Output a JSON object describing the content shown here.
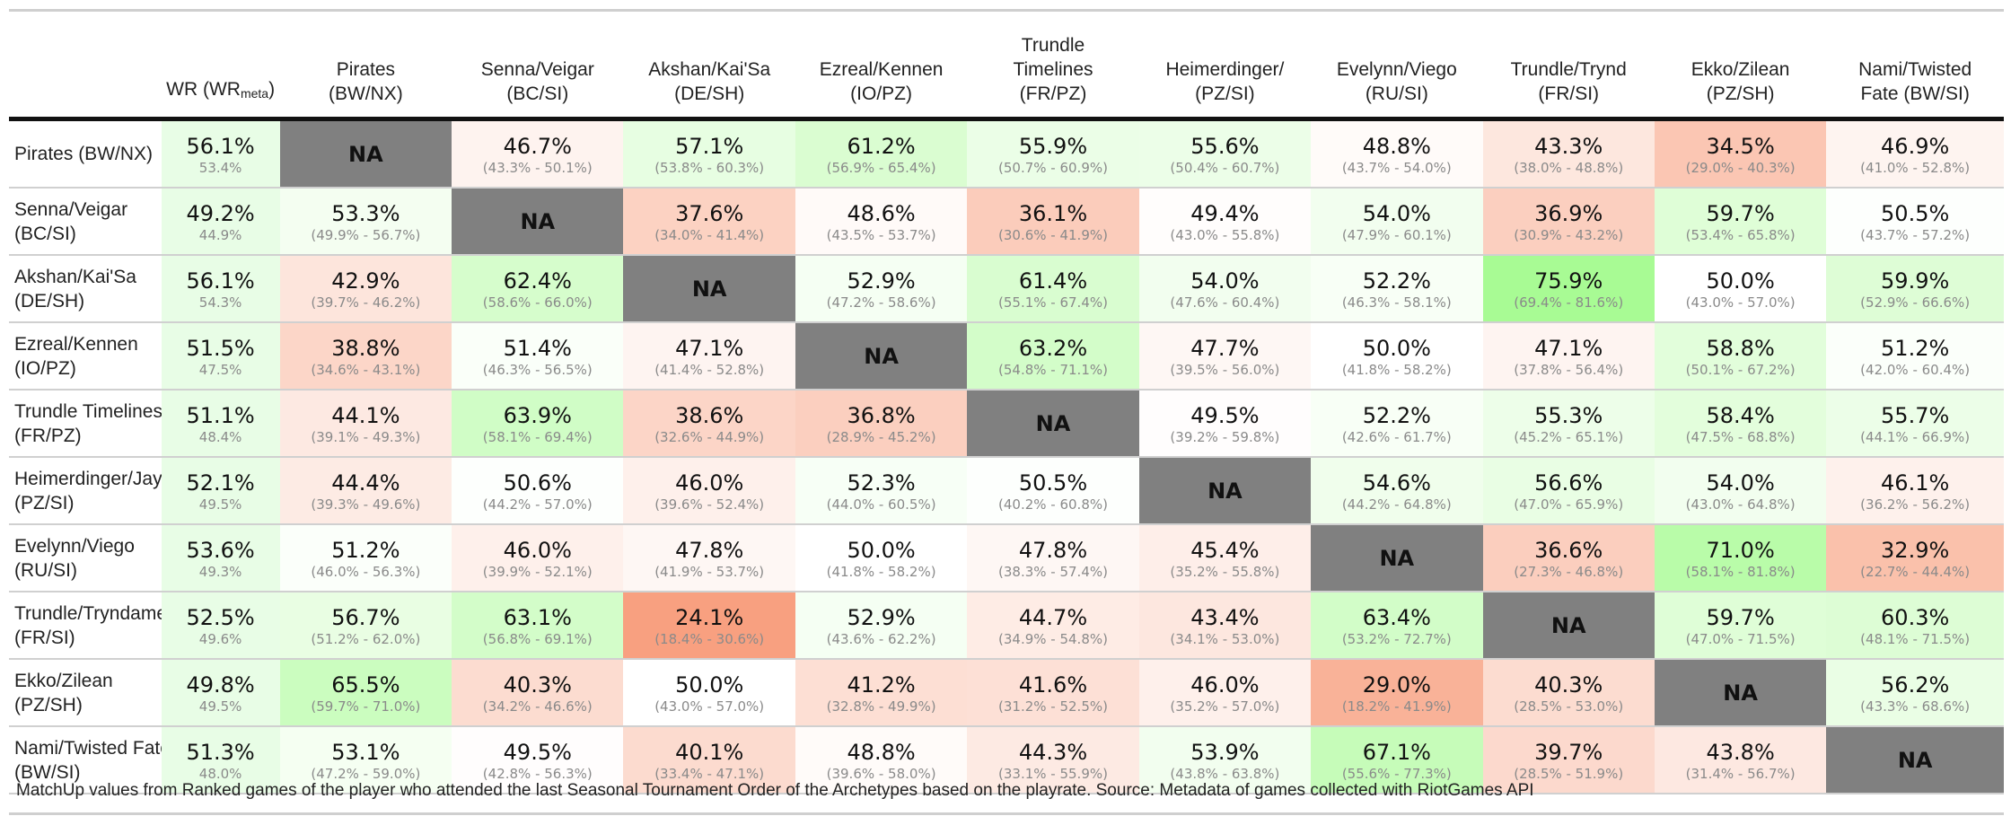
{
  "chart_data": {
    "type": "heatmap",
    "wr_header": "WR (WR",
    "wr_header_sub": "meta",
    "columns": [
      [
        "Pirates",
        "(BW/NX)"
      ],
      [
        "Senna/Veigar",
        "(BC/SI)"
      ],
      [
        "Akshan/Kai'Sa",
        "(DE/SH)"
      ],
      [
        "Ezreal/Kennen",
        "(IO/PZ)"
      ],
      [
        "Trundle",
        "Timelines",
        "(FR/PZ)"
      ],
      [
        "Heimerdinger/",
        "(PZ/SI)"
      ],
      [
        "Evelynn/Viego",
        "(RU/SI)"
      ],
      [
        "Trundle/Trynd",
        "(FR/SI)"
      ],
      [
        "Ekko/Zilean",
        "(PZ/SH)"
      ],
      [
        "Nami/Twisted",
        "Fate (BW/SI)"
      ]
    ],
    "rows": [
      {
        "label": [
          "Pirates (BW/NX)"
        ],
        "wr": "56.1%",
        "wr_meta": "53.4%",
        "values": [
          null,
          46.7,
          57.1,
          61.2,
          55.9,
          55.6,
          48.8,
          43.3,
          34.5,
          46.9
        ],
        "ci": [
          null,
          "(43.3% - 50.1%)",
          "(53.8% - 60.3%)",
          "(56.9% - 65.4%)",
          "(50.7% - 60.9%)",
          "(50.4% - 60.7%)",
          "(43.7% - 54.0%)",
          "(38.0% - 48.8%)",
          "(29.0% - 40.3%)",
          "(41.0% - 52.8%)"
        ]
      },
      {
        "label": [
          "Senna/Veigar",
          "(BC/SI)"
        ],
        "wr": "49.2%",
        "wr_meta": "44.9%",
        "values": [
          53.3,
          null,
          37.6,
          48.6,
          36.1,
          49.4,
          54.0,
          36.9,
          59.7,
          50.5
        ],
        "ci": [
          "(49.9% - 56.7%)",
          null,
          "(34.0% - 41.4%)",
          "(43.5% - 53.7%)",
          "(30.6% - 41.9%)",
          "(43.0% - 55.8%)",
          "(47.9% - 60.1%)",
          "(30.9% - 43.2%)",
          "(53.4% - 65.8%)",
          "(43.7% - 57.2%)"
        ]
      },
      {
        "label": [
          "Akshan/Kai'Sa",
          "(DE/SH)"
        ],
        "wr": "56.1%",
        "wr_meta": "54.3%",
        "values": [
          42.9,
          62.4,
          null,
          52.9,
          61.4,
          54.0,
          52.2,
          75.9,
          50.0,
          59.9
        ],
        "ci": [
          "(39.7% - 46.2%)",
          "(58.6% - 66.0%)",
          null,
          "(47.2% - 58.6%)",
          "(55.1% - 67.4%)",
          "(47.6% - 60.4%)",
          "(46.3% - 58.1%)",
          "(69.4% - 81.6%)",
          "(43.0% - 57.0%)",
          "(52.9% - 66.6%)"
        ]
      },
      {
        "label": [
          "Ezreal/Kennen",
          "(IO/PZ)"
        ],
        "wr": "51.5%",
        "wr_meta": "47.5%",
        "values": [
          38.8,
          51.4,
          47.1,
          null,
          63.2,
          47.7,
          50.0,
          47.1,
          58.8,
          51.2
        ],
        "ci": [
          "(34.6% - 43.1%)",
          "(46.3% - 56.5%)",
          "(41.4% - 52.8%)",
          null,
          "(54.8% - 71.1%)",
          "(39.5% - 56.0%)",
          "(41.8% - 58.2%)",
          "(37.8% - 56.4%)",
          "(50.1% - 67.2%)",
          "(42.0% - 60.4%)"
        ]
      },
      {
        "label": [
          "Trundle Timelines",
          "(FR/PZ)"
        ],
        "wr": "51.1%",
        "wr_meta": "48.4%",
        "values": [
          44.1,
          63.9,
          38.6,
          36.8,
          null,
          49.5,
          52.2,
          55.3,
          58.4,
          55.7
        ],
        "ci": [
          "(39.1% - 49.3%)",
          "(58.1% - 69.4%)",
          "(32.6% - 44.9%)",
          "(28.9% - 45.2%)",
          null,
          "(39.2% - 59.8%)",
          "(42.6% - 61.7%)",
          "(45.2% - 65.1%)",
          "(47.5% - 68.8%)",
          "(44.1% - 66.9%)"
        ]
      },
      {
        "label": [
          "Heimerdinger/Jayce",
          "(PZ/SI)"
        ],
        "wr": "52.1%",
        "wr_meta": "49.5%",
        "values": [
          44.4,
          50.6,
          46.0,
          52.3,
          50.5,
          null,
          54.6,
          56.6,
          54.0,
          46.1
        ],
        "ci": [
          "(39.3% - 49.6%)",
          "(44.2% - 57.0%)",
          "(39.6% - 52.4%)",
          "(44.0% - 60.5%)",
          "(40.2% - 60.8%)",
          null,
          "(44.2% - 64.8%)",
          "(47.0% - 65.9%)",
          "(43.0% - 64.8%)",
          "(36.2% - 56.2%)"
        ]
      },
      {
        "label": [
          "Evelynn/Viego",
          "(RU/SI)"
        ],
        "wr": "53.6%",
        "wr_meta": "49.3%",
        "values": [
          51.2,
          46.0,
          47.8,
          50.0,
          47.8,
          45.4,
          null,
          36.6,
          71.0,
          32.9
        ],
        "ci": [
          "(46.0% - 56.3%)",
          "(39.9% - 52.1%)",
          "(41.9% - 53.7%)",
          "(41.8% - 58.2%)",
          "(38.3% - 57.4%)",
          "(35.2% - 55.8%)",
          null,
          "(27.3% - 46.8%)",
          "(58.1% - 81.8%)",
          "(22.7% - 44.4%)"
        ]
      },
      {
        "label": [
          "Trundle/Tryndamere",
          "(FR/SI)"
        ],
        "wr": "52.5%",
        "wr_meta": "49.6%",
        "values": [
          56.7,
          63.1,
          24.1,
          52.9,
          44.7,
          43.4,
          63.4,
          null,
          59.7,
          60.3
        ],
        "ci": [
          "(51.2% - 62.0%)",
          "(56.8% - 69.1%)",
          "(18.4% - 30.6%)",
          "(43.6% - 62.2%)",
          "(34.9% - 54.8%)",
          "(34.1% - 53.0%)",
          "(53.2% - 72.7%)",
          null,
          "(47.0% - 71.5%)",
          "(48.1% - 71.5%)"
        ]
      },
      {
        "label": [
          "Ekko/Zilean",
          "(PZ/SH)"
        ],
        "wr": "49.8%",
        "wr_meta": "49.5%",
        "values": [
          65.5,
          40.3,
          50.0,
          41.2,
          41.6,
          46.0,
          29.0,
          40.3,
          null,
          56.2
        ],
        "ci": [
          "(59.7% - 71.0%)",
          "(34.2% - 46.6%)",
          "(43.0% - 57.0%)",
          "(32.8% - 49.9%)",
          "(31.2% - 52.5%)",
          "(35.2% - 57.0%)",
          "(18.2% - 41.9%)",
          "(28.5% - 53.0%)",
          null,
          "(43.3% - 68.6%)"
        ]
      },
      {
        "label": [
          "Nami/Twisted Fate",
          "(BW/SI)"
        ],
        "wr": "51.3%",
        "wr_meta": "48.0%",
        "values": [
          53.1,
          49.5,
          40.1,
          48.8,
          44.3,
          53.9,
          67.1,
          39.7,
          43.8,
          null
        ],
        "ci": [
          "(47.2% - 59.0%)",
          "(42.8% - 56.3%)",
          "(33.4% - 47.1%)",
          "(39.6% - 58.0%)",
          "(33.1% - 55.9%)",
          "(43.8% - 63.8%)",
          "(55.6% - 77.3%)",
          "(28.5% - 51.9%)",
          "(31.4% - 56.7%)",
          null
        ]
      }
    ],
    "na_label": "NA",
    "colors": {
      "low": "#f8a080",
      "mid": "#ffffff",
      "high": "#a8fb94",
      "na": "#808080",
      "wr_bg": "#e8fde6"
    }
  },
  "caption": "MatchUp values from Ranked games of the player who attended the last Seasonal Tournament Order of the Archetypes based on the playrate. Source: Metadata of games collected with RiotGames API"
}
